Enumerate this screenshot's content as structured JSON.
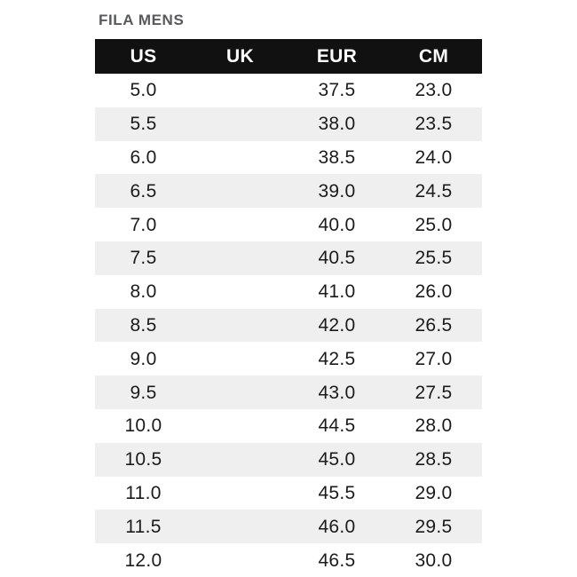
{
  "title": "FILA MENS",
  "chart_data": {
    "type": "table",
    "title": "FILA MENS",
    "columns": [
      "US",
      "UK",
      "EUR",
      "CM"
    ],
    "rows": [
      [
        "5.0",
        "",
        "37.5",
        "23.0"
      ],
      [
        "5.5",
        "",
        "38.0",
        "23.5"
      ],
      [
        "6.0",
        "",
        "38.5",
        "24.0"
      ],
      [
        "6.5",
        "",
        "39.0",
        "24.5"
      ],
      [
        "7.0",
        "",
        "40.0",
        "25.0"
      ],
      [
        "7.5",
        "",
        "40.5",
        "25.5"
      ],
      [
        "8.0",
        "",
        "41.0",
        "26.0"
      ],
      [
        "8.5",
        "",
        "42.0",
        "26.5"
      ],
      [
        "9.0",
        "",
        "42.5",
        "27.0"
      ],
      [
        "9.5",
        "",
        "43.0",
        "27.5"
      ],
      [
        "10.0",
        "",
        "44.5",
        "28.0"
      ],
      [
        "10.5",
        "",
        "45.0",
        "28.5"
      ],
      [
        "11.0",
        "",
        "45.5",
        "29.0"
      ],
      [
        "11.5",
        "",
        "46.0",
        "29.5"
      ],
      [
        "12.0",
        "",
        "46.5",
        "30.0"
      ]
    ],
    "layout": {
      "zebra_striping": true,
      "empty_column": "UK"
    }
  },
  "colors": {
    "header_bg": "#111111",
    "header_text": "#ffffff",
    "zebra_bg": "#efefef",
    "row_bg": "#ffffff",
    "body_text": "#1b1b1b",
    "title_text": "#58595b"
  }
}
